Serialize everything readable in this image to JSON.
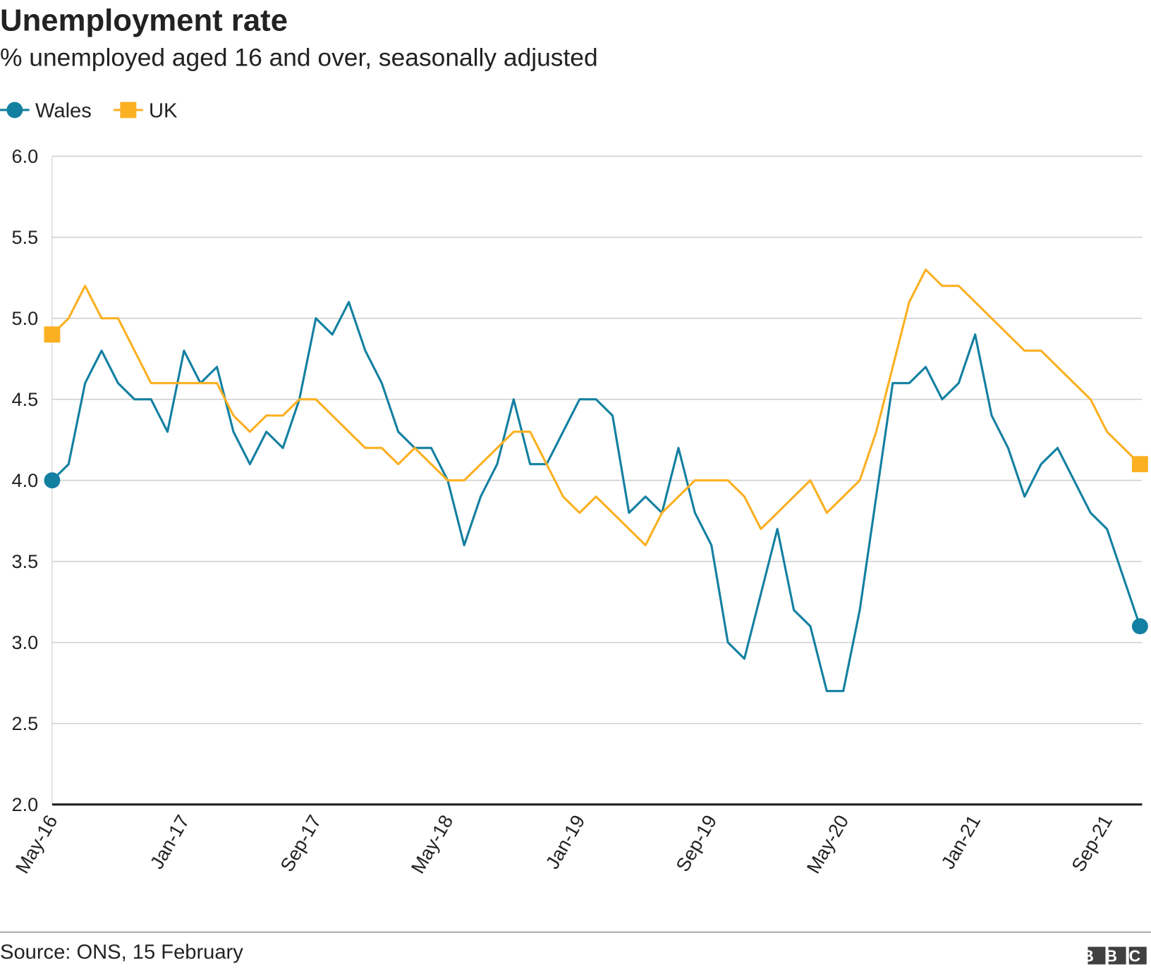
{
  "chart_data": {
    "type": "line",
    "title": "Unemployment rate",
    "subtitle": "% unemployed aged 16 and over, seasonally adjusted",
    "source": "Source: ONS, 15 February",
    "logo": "BBC",
    "categories": [
      "May-16",
      null,
      null,
      null,
      null,
      null,
      null,
      null,
      "Jan-17",
      null,
      null,
      null,
      null,
      null,
      null,
      null,
      "Sep-17",
      null,
      null,
      null,
      null,
      null,
      null,
      null,
      "May-18",
      null,
      null,
      null,
      null,
      null,
      null,
      null,
      "Jan-19",
      null,
      null,
      null,
      null,
      null,
      null,
      null,
      "Sep-19",
      null,
      null,
      null,
      null,
      null,
      null,
      null,
      "May-20",
      null,
      null,
      null,
      null,
      null,
      null,
      null,
      "Jan-21",
      null,
      null,
      null,
      null,
      null,
      null,
      null,
      "Sep-21",
      null,
      null
    ],
    "series": [
      {
        "name": "Wales",
        "color": "#1380a1",
        "marker": "circle",
        "values": [
          4.0,
          4.1,
          4.6,
          4.8,
          4.6,
          4.5,
          4.5,
          4.3,
          4.8,
          4.6,
          4.7,
          4.3,
          4.1,
          4.3,
          4.2,
          4.5,
          5.0,
          4.9,
          5.1,
          4.8,
          4.6,
          4.3,
          4.2,
          4.2,
          4.0,
          3.6,
          3.9,
          4.1,
          4.5,
          4.1,
          4.1,
          4.3,
          4.5,
          4.5,
          4.4,
          3.8,
          3.9,
          3.8,
          4.2,
          3.8,
          3.6,
          3.0,
          2.9,
          3.3,
          3.7,
          3.2,
          3.1,
          2.7,
          2.7,
          3.2,
          3.9,
          4.6,
          4.6,
          4.7,
          4.5,
          4.6,
          4.9,
          4.4,
          4.2,
          3.9,
          4.1,
          4.2,
          4.0,
          3.8,
          3.7,
          3.4,
          3.1
        ]
      },
      {
        "name": "UK",
        "color": "#fbb022",
        "marker": "square",
        "values": [
          4.9,
          5.0,
          5.2,
          5.0,
          5.0,
          4.8,
          4.6,
          4.6,
          4.6,
          4.6,
          4.6,
          4.4,
          4.3,
          4.4,
          4.4,
          4.5,
          4.5,
          4.4,
          4.3,
          4.2,
          4.2,
          4.1,
          4.2,
          4.1,
          4.0,
          4.0,
          4.1,
          4.2,
          4.3,
          4.3,
          4.1,
          3.9,
          3.8,
          3.9,
          3.8,
          3.7,
          3.6,
          3.8,
          3.9,
          4.0,
          4.0,
          4.0,
          3.9,
          3.7,
          3.8,
          3.9,
          4.0,
          3.8,
          3.9,
          4.0,
          4.3,
          4.7,
          5.1,
          5.3,
          5.2,
          5.2,
          5.1,
          5.0,
          4.9,
          4.8,
          4.8,
          4.7,
          4.6,
          4.5,
          4.3,
          4.2,
          4.1
        ]
      }
    ],
    "ylim": [
      2.0,
      6.0
    ],
    "yticks": [
      {
        "value": 2,
        "label": "2.0"
      },
      2.5,
      {
        "value": 3,
        "label": "3.0"
      },
      3.5,
      {
        "value": 4,
        "label": "4.0"
      },
      4.5,
      {
        "value": 5,
        "label": "5.0"
      },
      5.5,
      {
        "value": 6,
        "label": "6.0"
      }
    ],
    "grid": true,
    "legend": "top-left"
  }
}
